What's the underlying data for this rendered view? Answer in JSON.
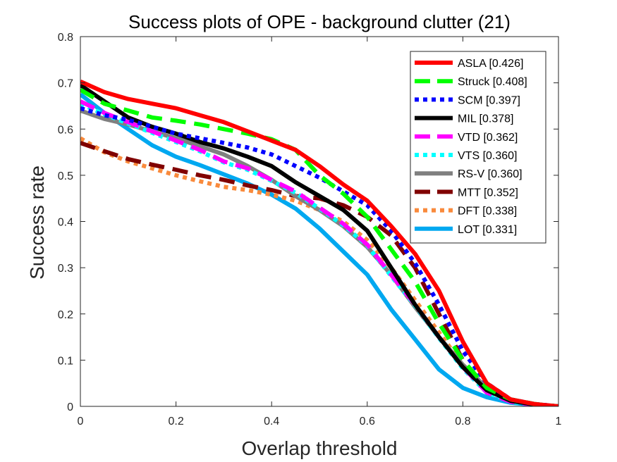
{
  "chart_data": {
    "type": "line",
    "title": "Success plots of OPE - background clutter (21)",
    "xlabel": "Overlap threshold",
    "ylabel": "Success rate",
    "xlim": [
      0,
      1
    ],
    "ylim": [
      0,
      0.8
    ],
    "xticks": [
      0,
      0.2,
      0.4,
      0.6,
      0.8,
      1
    ],
    "xtick_labels": [
      "0",
      "0.2",
      "0.4",
      "0.6",
      "0.8",
      "1"
    ],
    "yticks": [
      0,
      0.1,
      0.2,
      0.3,
      0.4,
      0.5,
      0.6,
      0.7,
      0.8
    ],
    "ytick_labels": [
      "0",
      "0.1",
      "0.2",
      "0.3",
      "0.4",
      "0.5",
      "0.6",
      "0.7",
      "0.8"
    ],
    "grid": false,
    "legend_position": "top-right",
    "x": [
      0,
      0.05,
      0.1,
      0.15,
      0.2,
      0.25,
      0.3,
      0.35,
      0.4,
      0.45,
      0.5,
      0.55,
      0.6,
      0.65,
      0.7,
      0.75,
      0.8,
      0.85,
      0.9,
      0.95,
      1
    ],
    "series": [
      {
        "name": "ASLA [0.426]",
        "color": "#ff0000",
        "dash": "solid",
        "values": [
          0.703,
          0.68,
          0.665,
          0.655,
          0.645,
          0.63,
          0.615,
          0.595,
          0.575,
          0.555,
          0.52,
          0.48,
          0.445,
          0.39,
          0.33,
          0.25,
          0.14,
          0.05,
          0.015,
          0.005,
          0.0
        ]
      },
      {
        "name": "Struck [0.408]",
        "color": "#00ff00",
        "dash": "dash",
        "values": [
          0.685,
          0.655,
          0.64,
          0.625,
          0.618,
          0.61,
          0.6,
          0.59,
          0.578,
          0.555,
          0.5,
          0.46,
          0.41,
          0.34,
          0.27,
          0.18,
          0.1,
          0.04,
          0.015,
          0.005,
          0.0
        ]
      },
      {
        "name": "SCM [0.397]",
        "color": "#0000ff",
        "dash": "dot",
        "values": [
          0.645,
          0.63,
          0.62,
          0.605,
          0.59,
          0.58,
          0.57,
          0.56,
          0.545,
          0.52,
          0.495,
          0.465,
          0.435,
          0.38,
          0.31,
          0.22,
          0.12,
          0.05,
          0.015,
          0.005,
          0.0
        ]
      },
      {
        "name": "MIL [0.378]",
        "color": "#000000",
        "dash": "solid",
        "values": [
          0.695,
          0.66,
          0.625,
          0.605,
          0.59,
          0.572,
          0.558,
          0.54,
          0.52,
          0.485,
          0.455,
          0.425,
          0.38,
          0.3,
          0.22,
          0.15,
          0.085,
          0.035,
          0.012,
          0.004,
          0.0
        ]
      },
      {
        "name": "VTD [0.362]",
        "color": "#ff00ff",
        "dash": "dash",
        "values": [
          0.66,
          0.635,
          0.615,
          0.595,
          0.575,
          0.555,
          0.53,
          0.515,
          0.49,
          0.465,
          0.43,
          0.395,
          0.35,
          0.285,
          0.22,
          0.15,
          0.085,
          0.03,
          0.01,
          0.003,
          0.0
        ]
      },
      {
        "name": "VTS [0.360]",
        "color": "#00ffff",
        "dash": "dot",
        "values": [
          0.655,
          0.632,
          0.612,
          0.592,
          0.572,
          0.552,
          0.528,
          0.512,
          0.488,
          0.462,
          0.428,
          0.392,
          0.348,
          0.282,
          0.218,
          0.148,
          0.082,
          0.03,
          0.01,
          0.003,
          0.0
        ]
      },
      {
        "name": "RS-V [0.360]",
        "color": "#808080",
        "dash": "solid",
        "values": [
          0.64,
          0.622,
          0.61,
          0.595,
          0.58,
          0.563,
          0.545,
          0.52,
          0.49,
          0.455,
          0.425,
          0.39,
          0.345,
          0.285,
          0.215,
          0.15,
          0.09,
          0.04,
          0.015,
          0.005,
          0.0
        ]
      },
      {
        "name": "MTT [0.352]",
        "color": "#800000",
        "dash": "dash",
        "values": [
          0.57,
          0.552,
          0.535,
          0.523,
          0.512,
          0.5,
          0.49,
          0.478,
          0.468,
          0.455,
          0.45,
          0.435,
          0.41,
          0.37,
          0.3,
          0.2,
          0.1,
          0.03,
          0.01,
          0.003,
          0.0
        ]
      },
      {
        "name": "DFT [0.338]",
        "color": "#f98a3c",
        "dash": "dot",
        "values": [
          0.58,
          0.55,
          0.53,
          0.515,
          0.5,
          0.487,
          0.475,
          0.468,
          0.458,
          0.445,
          0.425,
          0.4,
          0.36,
          0.3,
          0.23,
          0.16,
          0.09,
          0.04,
          0.015,
          0.005,
          0.0
        ]
      },
      {
        "name": "LOT [0.331]",
        "color": "#00a8f0",
        "dash": "solid",
        "values": [
          0.675,
          0.635,
          0.6,
          0.565,
          0.54,
          0.522,
          0.502,
          0.482,
          0.458,
          0.428,
          0.385,
          0.335,
          0.285,
          0.21,
          0.145,
          0.08,
          0.04,
          0.02,
          0.008,
          0.003,
          0.0
        ]
      }
    ]
  }
}
